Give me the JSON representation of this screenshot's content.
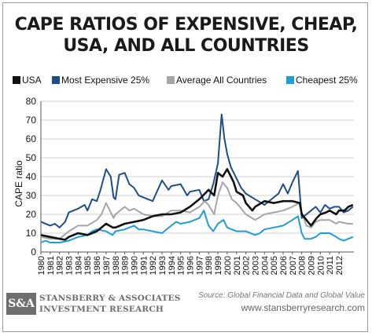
{
  "header": {
    "title_line1": "CAPE RATIOS OF EXPENSIVE, CHEAP,",
    "title_line2": "USA, AND ALL COUNTRIES"
  },
  "legend": [
    {
      "label": "USA",
      "color": "#111111"
    },
    {
      "label": "Most Expensive 25%",
      "color": "#1f4e87"
    },
    {
      "label": "Average All Countries",
      "color": "#a6a6a6"
    },
    {
      "label": "Cheapest 25%",
      "color": "#1f9ed5"
    }
  ],
  "chart_data": {
    "type": "line",
    "title": "CAPE RATIOS OF EXPENSIVE, CHEAP, USA, AND ALL COUNTRIES",
    "ylabel": "CAPE ratio",
    "xlabel": "",
    "ylim": [
      0,
      80
    ],
    "yticks": [
      0,
      10,
      20,
      30,
      40,
      50,
      60,
      70,
      80
    ],
    "xlim": [
      1980,
      2013.6
    ],
    "xticks": [
      "1980",
      "1981",
      "1982",
      "1983",
      "1984",
      "1985",
      "1986",
      "1987",
      "1988",
      "1989",
      "1990",
      "1991",
      "1992",
      "1993",
      "1994",
      "1995",
      "1996",
      "1997",
      "1998",
      "1999",
      "2000",
      "2001",
      "2002",
      "2003",
      "2004",
      "2005",
      "2006",
      "2007",
      "2008",
      "2009",
      "2010",
      "2011",
      "2012"
    ],
    "grid": "horizontal",
    "legend_position": "top",
    "series": [
      {
        "name": "USA",
        "color": "#111111",
        "x": [
          1980,
          1981,
          1982,
          1982.6,
          1983,
          1984,
          1985,
          1986,
          1987,
          1987.7,
          1988,
          1989,
          1990,
          1991,
          1992,
          1993,
          1994,
          1995,
          1996,
          1997,
          1998,
          1998.6,
          1999,
          1999.5,
          2000,
          2000.7,
          2001,
          2001.7,
          2002,
          2002.7,
          2003,
          2004,
          2005,
          2006,
          2007,
          2007.8,
          2008,
          2008.5,
          2009,
          2009.6,
          2010,
          2010.6,
          2011,
          2011.7,
          2012,
          2012.6,
          2013,
          2013.5
        ],
        "y": [
          9,
          8,
          7,
          6.5,
          8,
          10,
          9,
          11,
          15,
          13,
          13,
          15,
          16,
          17,
          19,
          20,
          20,
          21,
          24,
          28,
          33,
          30,
          42,
          40,
          44,
          37,
          32,
          30,
          26,
          22,
          24,
          27,
          26,
          27,
          27,
          26,
          20,
          17,
          14,
          18,
          20,
          21,
          22,
          20,
          22,
          22,
          24,
          25
        ]
      },
      {
        "name": "Most Expensive 25%",
        "color": "#1f4e87",
        "x": [
          1980,
          1981,
          1981.5,
          1982,
          1982.6,
          1983,
          1984,
          1984.7,
          1985,
          1985.5,
          1986,
          1986.4,
          1987,
          1987.5,
          1987.8,
          1988,
          1988.4,
          1989,
          1989.5,
          1990,
          1990.5,
          1991,
          1992,
          1993,
          1993.7,
          1994,
          1995,
          1995.7,
          1996,
          1997,
          1997.5,
          1998,
          1998.5,
          1999,
          1999.4,
          1999.7,
          2000,
          2000.4,
          2001,
          2001.5,
          2002,
          2003,
          2004,
          2005,
          2005.5,
          2006,
          2006.5,
          2007,
          2007.6,
          2008,
          2008.5,
          2009,
          2009.5,
          2010,
          2010.5,
          2011,
          2011.5,
          2012,
          2012.5,
          2013,
          2013.5
        ],
        "y": [
          16,
          14,
          15,
          13,
          16,
          21,
          23,
          25,
          22,
          28,
          27,
          33,
          44,
          40,
          29,
          28,
          41,
          42,
          36,
          34,
          30,
          29,
          27,
          38,
          33,
          35,
          36,
          30,
          32,
          33,
          27,
          28,
          36,
          47,
          73,
          60,
          52,
          45,
          39,
          34,
          31,
          28,
          25,
          29,
          31,
          36,
          31,
          37,
          43,
          18,
          20,
          22,
          24,
          21,
          25,
          23,
          24,
          24,
          21,
          22,
          24
        ]
      },
      {
        "name": "Average All Countries",
        "color": "#a6a6a6",
        "x": [
          1980,
          1981,
          1982,
          1983,
          1984,
          1985,
          1986,
          1986.5,
          1987,
          1987.8,
          1988,
          1989,
          1989.5,
          1990,
          1991,
          1992,
          1993,
          1994,
          1995,
          1996,
          1997,
          1997.6,
          1998,
          1998.6,
          1999,
          1999.5,
          2000,
          2000.5,
          2001,
          2002,
          2003,
          2004,
          2005,
          2006,
          2007,
          2007.7,
          2008,
          2008.5,
          2009,
          2009.5,
          2010,
          2011,
          2011.7,
          2012,
          2013,
          2013.5
        ],
        "y": [
          8,
          7,
          7,
          11,
          14,
          14,
          17,
          20,
          26,
          18,
          20,
          24,
          22,
          23,
          20,
          19,
          19,
          22,
          22,
          21,
          24,
          27,
          25,
          20,
          30,
          37,
          34,
          28,
          26,
          20,
          17,
          20,
          21,
          22,
          24,
          26,
          21,
          14,
          13,
          16,
          17,
          17,
          15,
          16,
          15,
          15
        ]
      },
      {
        "name": "Cheapest 25%",
        "color": "#1f9ed5",
        "x": [
          1980,
          1980.5,
          1981,
          1982,
          1983,
          1984,
          1985,
          1985.5,
          1986,
          1987,
          1987.7,
          1988,
          1989,
          1990,
          1990.5,
          1991,
          1992,
          1993,
          1994,
          1994.5,
          1995,
          1996,
          1997,
          1997.5,
          1998,
          1998.5,
          1999,
          1999.6,
          2000,
          2000.5,
          2001,
          2002,
          2003,
          2003.5,
          2004,
          2005,
          2006,
          2007,
          2007.6,
          2008,
          2008.3,
          2009,
          2009.5,
          2010,
          2011,
          2011.7,
          2012,
          2012.5,
          2013,
          2013.5
        ],
        "y": [
          5,
          6,
          5,
          5,
          6,
          8,
          9,
          11,
          12,
          11,
          9,
          11,
          12,
          14,
          12,
          12,
          11,
          10,
          14,
          16,
          15,
          16,
          18,
          22,
          14,
          11,
          15,
          17,
          13,
          12,
          11,
          11,
          9,
          10,
          12,
          13,
          14,
          17,
          19,
          10,
          7,
          7,
          8,
          10,
          10,
          8,
          7,
          6,
          7,
          8
        ]
      }
    ]
  },
  "footer": {
    "logo": "S&A",
    "company_line1": "STANSBERRY & ASSOCIATES",
    "company_line2": "INVESTMENT RESEARCH",
    "source": "Source: Global Financial Data and Global Value",
    "url": "www.stansberryresearch.com"
  }
}
